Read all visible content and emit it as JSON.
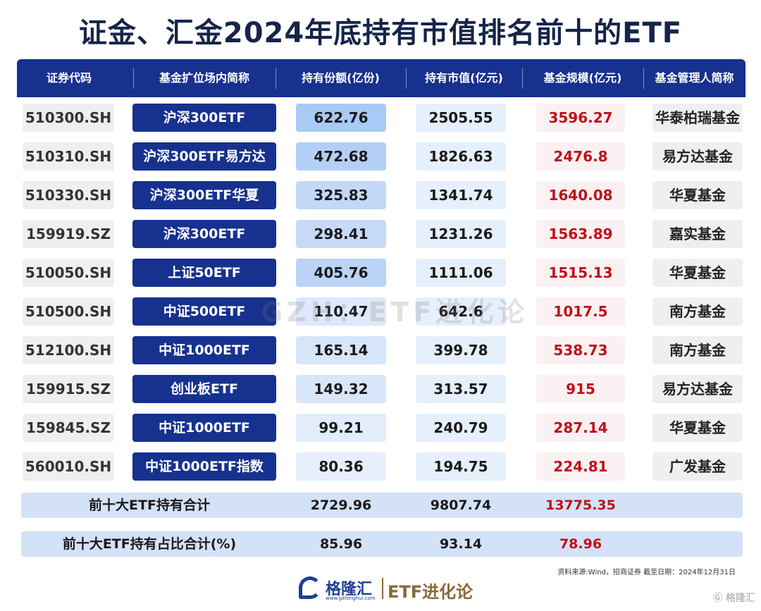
{
  "title": "证金、汇金2024年底持有市值排名前十的ETF",
  "header": {
    "code": "证券代码",
    "name": "基金扩位场内简称",
    "share": "持有份额(亿份)",
    "value": "持有市值(亿元)",
    "scale": "基金规模(亿元)",
    "manager": "基金管理人简称"
  },
  "rows": [
    {
      "code": "510300.SH",
      "name": "沪深300ETF",
      "share": "622.76",
      "value": "2505.55",
      "scale": "3596.27",
      "manager": "华泰柏瑞基金",
      "share_color": "#a9c9f6"
    },
    {
      "code": "510310.SH",
      "name": "沪深300ETF易方达",
      "share": "472.68",
      "value": "1826.63",
      "scale": "2476.8",
      "manager": "易方达基金",
      "share_color": "#b4cff6"
    },
    {
      "code": "510330.SH",
      "name": "沪深300ETF华夏",
      "share": "325.83",
      "value": "1341.74",
      "scale": "1640.08",
      "manager": "华夏基金",
      "share_color": "#c3d8f7"
    },
    {
      "code": "159919.SZ",
      "name": "沪深300ETF",
      "share": "298.41",
      "value": "1231.26",
      "scale": "1563.89",
      "manager": "嘉实基金",
      "share_color": "#c6daf8"
    },
    {
      "code": "510050.SH",
      "name": "上证50ETF",
      "share": "405.76",
      "value": "1111.06",
      "scale": "1515.13",
      "manager": "华夏基金",
      "share_color": "#bad3f6"
    },
    {
      "code": "510500.SH",
      "name": "中证500ETF",
      "share": "110.47",
      "value": "642.6",
      "scale": "1017.5",
      "manager": "南方基金",
      "share_color": "#dde9fa"
    },
    {
      "code": "512100.SH",
      "name": "中证1000ETF",
      "share": "165.14",
      "value": "399.78",
      "scale": "538.73",
      "manager": "南方基金",
      "share_color": "#d7e5f9"
    },
    {
      "code": "159915.SZ",
      "name": "创业板ETF",
      "share": "149.32",
      "value": "313.57",
      "scale": "915",
      "manager": "易方达基金",
      "share_color": "#d9e6fa"
    },
    {
      "code": "159845.SZ",
      "name": "中证1000ETF",
      "share": "99.21",
      "value": "240.79",
      "scale": "287.14",
      "manager": "华夏基金",
      "share_color": "#e2ecfb"
    },
    {
      "code": "560010.SH",
      "name": "中证1000ETF指数",
      "share": "80.36",
      "value": "194.75",
      "scale": "224.81",
      "manager": "广发基金",
      "share_color": "#e7effc"
    }
  ],
  "totals": [
    {
      "label": "前十大ETF持有合计",
      "share": "2729.96",
      "value": "9807.74",
      "scale": "13775.35"
    },
    {
      "label": "前十大ETF持有占比合计(%)",
      "share": "85.96",
      "value": "93.14",
      "scale": "78.96"
    }
  ],
  "watermark": "GZH：ETF进化论",
  "source": "资料来源:Wind，招商证券 截至日期：2024年12月31日",
  "footer": {
    "brand": "格隆汇",
    "url": "www.gelonghui.com",
    "etf_brand": "ETF进化论"
  },
  "corner_mark": "格隆汇"
}
